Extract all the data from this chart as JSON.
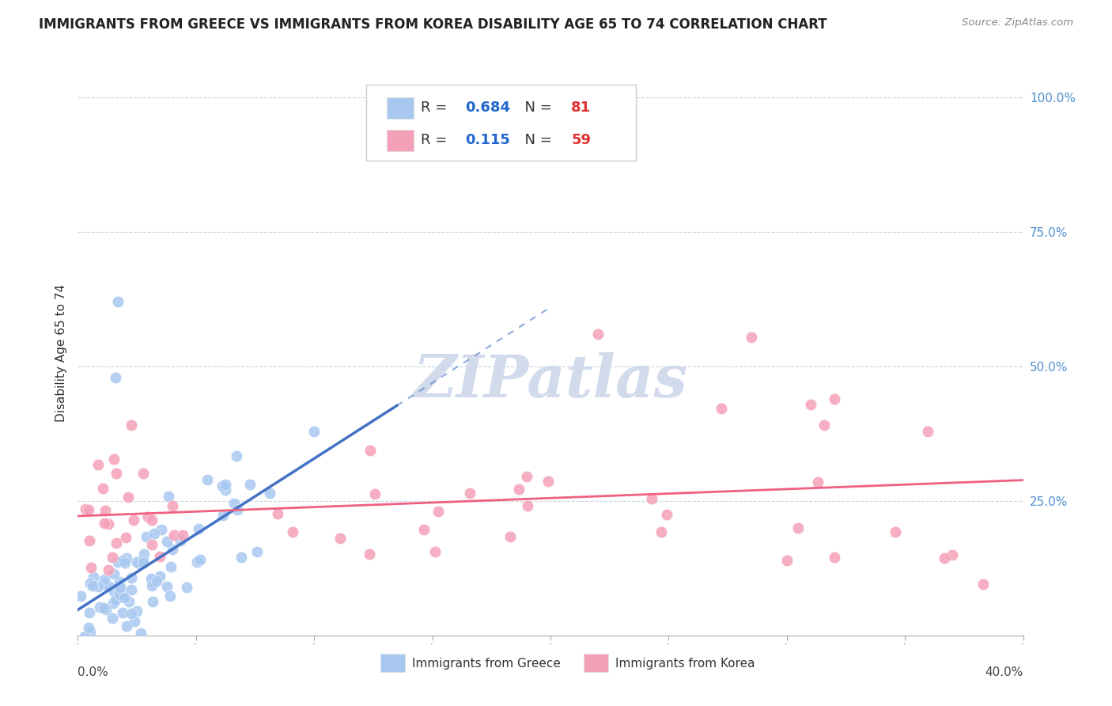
{
  "title": "IMMIGRANTS FROM GREECE VS IMMIGRANTS FROM KOREA DISABILITY AGE 65 TO 74 CORRELATION CHART",
  "source": "Source: ZipAtlas.com",
  "ylabel": "Disability Age 65 to 74",
  "legend_label_greece": "Immigrants from Greece",
  "legend_label_korea": "Immigrants from Korea",
  "xlim": [
    0.0,
    0.4
  ],
  "ylim": [
    0.0,
    1.05
  ],
  "greece_R": 0.684,
  "greece_N": 81,
  "korea_R": 0.115,
  "korea_N": 59,
  "greece_color": "#a8c8f0",
  "korea_color": "#f4a0b8",
  "greece_line_color": "#4472c4",
  "korea_line_color": "#f06080",
  "background_color": "#ffffff",
  "watermark_color": "#cdd8ea",
  "grid_color": "#c8d4e4",
  "title_fontsize": 12,
  "axis_label_fontsize": 11,
  "right_axis_color": "#5090d0",
  "ytick_positions": [
    0.0,
    0.25,
    0.5,
    0.75,
    1.0
  ],
  "ytick_labels": [
    "",
    "25.0%",
    "50.0%",
    "75.0%",
    "100.0%"
  ]
}
